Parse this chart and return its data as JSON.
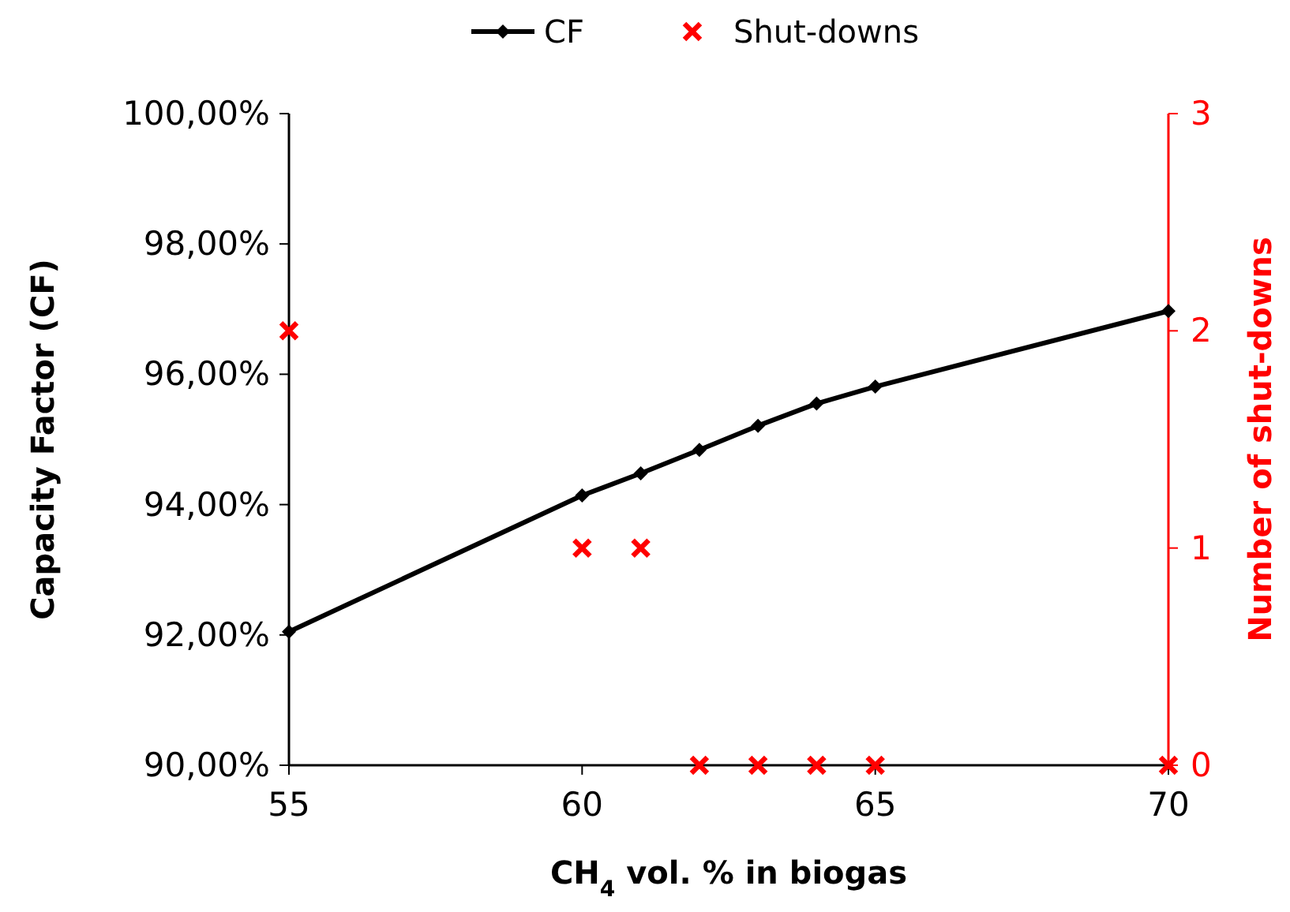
{
  "chart_data": {
    "type": "line",
    "xlabel": "CH$_{4}$ vol. % in biogas",
    "ylabel": "Capacity Factor (CF)",
    "y2label": "Number of shut-downs",
    "x": [
      55,
      60,
      61,
      62,
      63,
      64,
      65,
      70
    ],
    "series": [
      {
        "name": "CF",
        "color": "#000000",
        "marker": "diamond",
        "values": [
          92.05,
          94.14,
          94.48,
          94.84,
          95.21,
          95.55,
          95.81,
          96.97
        ]
      },
      {
        "name": "Shut-downs",
        "type": "scatter",
        "color": "#ff0000",
        "marker": "cross",
        "axis": "y2",
        "values": [
          2,
          1,
          1,
          0,
          0,
          0,
          0,
          0
        ]
      }
    ],
    "xlim": [
      55,
      70
    ],
    "xticks": [
      55,
      60,
      65,
      70
    ],
    "ylim": [
      90,
      100
    ],
    "yticks": [
      {
        "value": 90,
        "label": "90,00%"
      },
      {
        "value": 92,
        "label": "92,00%"
      },
      {
        "value": 94,
        "label": "94,00%"
      },
      {
        "value": 96,
        "label": "96,00%"
      },
      {
        "value": 98,
        "label": "98,00%"
      },
      {
        "value": 100,
        "label": "100,00%"
      }
    ],
    "y2lim": [
      0,
      3
    ],
    "y2ticks": [
      0,
      1,
      2,
      3
    ],
    "grid": false,
    "legend": "top"
  }
}
